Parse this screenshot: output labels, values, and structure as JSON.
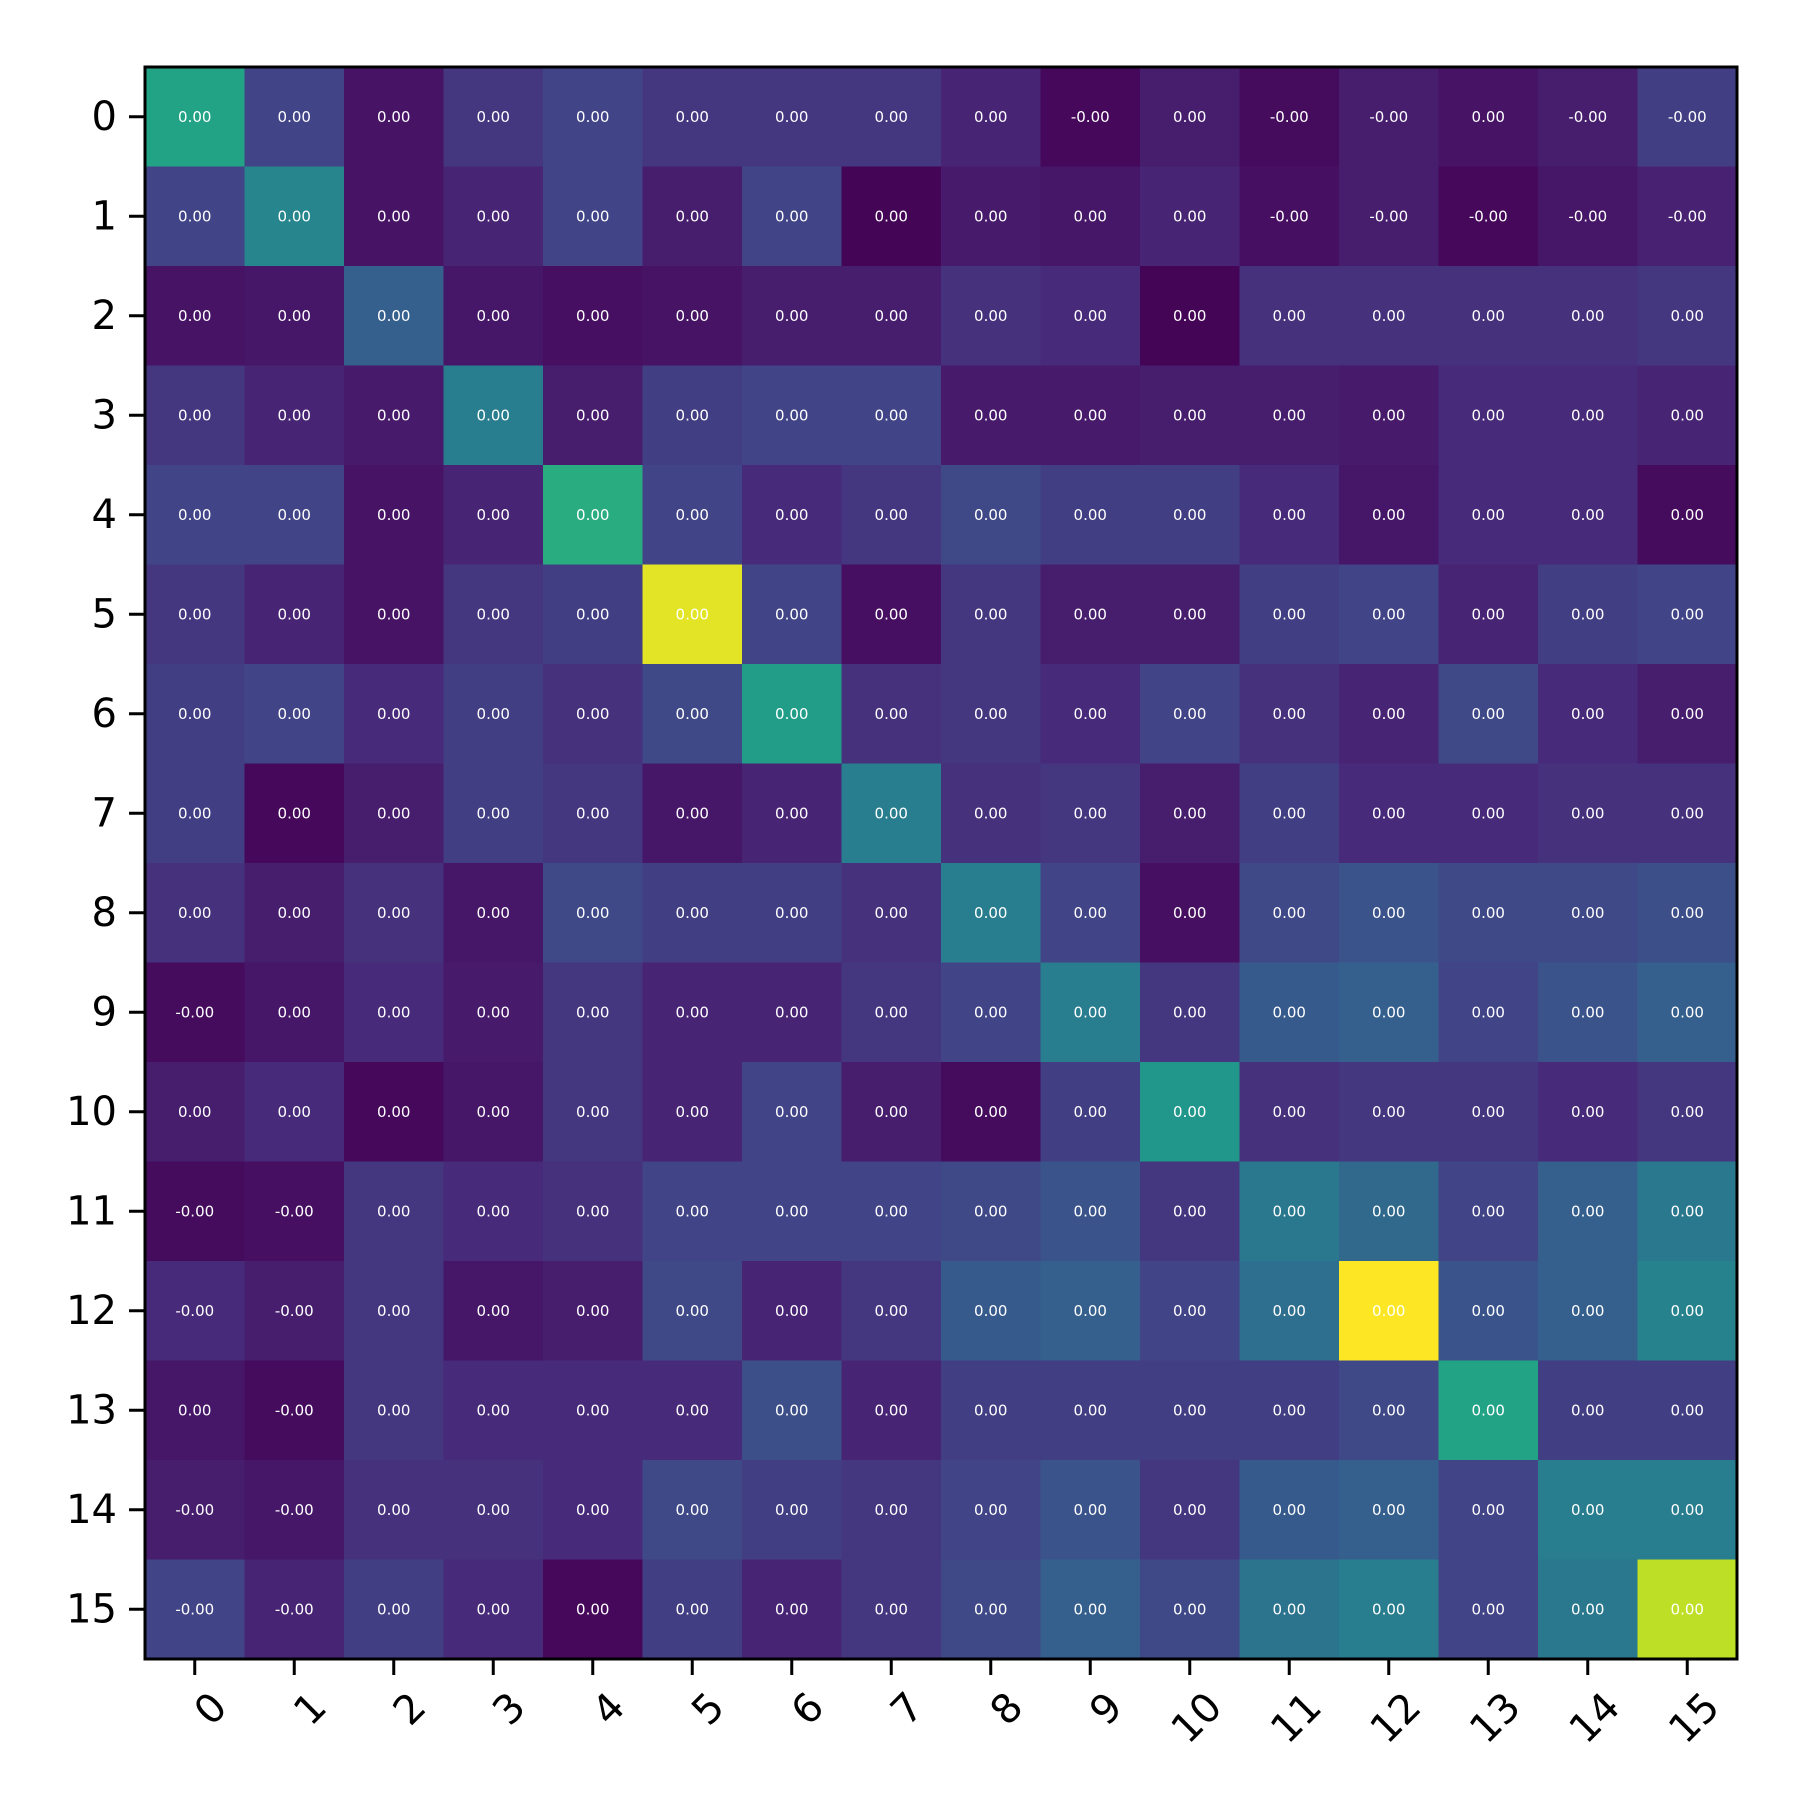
{
  "chart_data": {
    "type": "heatmap",
    "title": "",
    "xlabel": "",
    "ylabel": "",
    "colormap": "viridis",
    "colorbar": false,
    "x_categories": [
      "0",
      "1",
      "2",
      "3",
      "4",
      "5",
      "6",
      "7",
      "8",
      "9",
      "10",
      "11",
      "12",
      "13",
      "14",
      "15"
    ],
    "y_categories": [
      "0",
      "1",
      "2",
      "3",
      "4",
      "5",
      "6",
      "7",
      "8",
      "9",
      "10",
      "11",
      "12",
      "13",
      "14",
      "15"
    ],
    "x_tick_rotation_deg": 45,
    "intensity": [
      [
        0.58,
        0.2,
        0.05,
        0.16,
        0.2,
        0.16,
        0.16,
        0.16,
        0.1,
        0.02,
        0.08,
        0.03,
        0.08,
        0.05,
        0.08,
        0.18
      ],
      [
        0.2,
        0.45,
        0.05,
        0.1,
        0.2,
        0.08,
        0.2,
        0.01,
        0.07,
        0.06,
        0.1,
        0.04,
        0.08,
        0.02,
        0.06,
        0.09
      ],
      [
        0.05,
        0.06,
        0.3,
        0.06,
        0.04,
        0.05,
        0.08,
        0.08,
        0.14,
        0.12,
        0.01,
        0.14,
        0.14,
        0.14,
        0.14,
        0.16
      ],
      [
        0.16,
        0.1,
        0.07,
        0.42,
        0.08,
        0.18,
        0.2,
        0.2,
        0.07,
        0.07,
        0.08,
        0.08,
        0.07,
        0.12,
        0.12,
        0.1
      ],
      [
        0.2,
        0.2,
        0.05,
        0.1,
        0.62,
        0.2,
        0.12,
        0.16,
        0.22,
        0.18,
        0.18,
        0.12,
        0.06,
        0.12,
        0.12,
        0.03
      ],
      [
        0.16,
        0.1,
        0.05,
        0.16,
        0.18,
        0.96,
        0.2,
        0.04,
        0.16,
        0.08,
        0.08,
        0.18,
        0.2,
        0.1,
        0.18,
        0.2
      ],
      [
        0.18,
        0.2,
        0.12,
        0.18,
        0.14,
        0.22,
        0.55,
        0.14,
        0.16,
        0.12,
        0.2,
        0.14,
        0.1,
        0.22,
        0.12,
        0.08
      ],
      [
        0.18,
        0.02,
        0.08,
        0.18,
        0.16,
        0.06,
        0.1,
        0.42,
        0.14,
        0.16,
        0.08,
        0.18,
        0.12,
        0.12,
        0.14,
        0.14
      ],
      [
        0.14,
        0.08,
        0.14,
        0.06,
        0.22,
        0.18,
        0.18,
        0.14,
        0.42,
        0.2,
        0.04,
        0.22,
        0.26,
        0.22,
        0.22,
        0.24
      ],
      [
        0.03,
        0.06,
        0.12,
        0.07,
        0.16,
        0.1,
        0.1,
        0.16,
        0.2,
        0.42,
        0.16,
        0.28,
        0.3,
        0.2,
        0.26,
        0.3
      ],
      [
        0.08,
        0.12,
        0.02,
        0.06,
        0.16,
        0.1,
        0.2,
        0.08,
        0.03,
        0.18,
        0.52,
        0.14,
        0.16,
        0.16,
        0.12,
        0.16
      ],
      [
        0.03,
        0.04,
        0.16,
        0.12,
        0.14,
        0.2,
        0.2,
        0.2,
        0.22,
        0.26,
        0.16,
        0.4,
        0.34,
        0.2,
        0.3,
        0.4
      ],
      [
        0.12,
        0.08,
        0.16,
        0.06,
        0.08,
        0.22,
        0.1,
        0.16,
        0.28,
        0.3,
        0.2,
        0.36,
        1.0,
        0.26,
        0.3,
        0.44
      ],
      [
        0.06,
        0.03,
        0.16,
        0.12,
        0.12,
        0.12,
        0.24,
        0.1,
        0.18,
        0.18,
        0.18,
        0.18,
        0.22,
        0.58,
        0.18,
        0.18
      ],
      [
        0.08,
        0.06,
        0.14,
        0.14,
        0.12,
        0.22,
        0.18,
        0.16,
        0.2,
        0.26,
        0.16,
        0.28,
        0.3,
        0.2,
        0.42,
        0.42
      ],
      [
        0.2,
        0.1,
        0.18,
        0.12,
        0.02,
        0.18,
        0.1,
        0.16,
        0.22,
        0.3,
        0.22,
        0.38,
        0.42,
        0.2,
        0.4,
        0.9
      ]
    ],
    "labels": [
      [
        "0.00",
        "0.00",
        "0.00",
        "0.00",
        "0.00",
        "0.00",
        "0.00",
        "0.00",
        "0.00",
        "-0.00",
        "0.00",
        "-0.00",
        "-0.00",
        "0.00",
        "-0.00",
        "-0.00"
      ],
      [
        "0.00",
        "0.00",
        "0.00",
        "0.00",
        "0.00",
        "0.00",
        "0.00",
        "0.00",
        "0.00",
        "0.00",
        "0.00",
        "-0.00",
        "-0.00",
        "-0.00",
        "-0.00",
        "-0.00"
      ],
      [
        "0.00",
        "0.00",
        "0.00",
        "0.00",
        "0.00",
        "0.00",
        "0.00",
        "0.00",
        "0.00",
        "0.00",
        "0.00",
        "0.00",
        "0.00",
        "0.00",
        "0.00",
        "0.00"
      ],
      [
        "0.00",
        "0.00",
        "0.00",
        "0.00",
        "0.00",
        "0.00",
        "0.00",
        "0.00",
        "0.00",
        "0.00",
        "0.00",
        "0.00",
        "0.00",
        "0.00",
        "0.00",
        "0.00"
      ],
      [
        "0.00",
        "0.00",
        "0.00",
        "0.00",
        "0.00",
        "0.00",
        "0.00",
        "0.00",
        "0.00",
        "0.00",
        "0.00",
        "0.00",
        "0.00",
        "0.00",
        "0.00",
        "0.00"
      ],
      [
        "0.00",
        "0.00",
        "0.00",
        "0.00",
        "0.00",
        "0.00",
        "0.00",
        "0.00",
        "0.00",
        "0.00",
        "0.00",
        "0.00",
        "0.00",
        "0.00",
        "0.00",
        "0.00"
      ],
      [
        "0.00",
        "0.00",
        "0.00",
        "0.00",
        "0.00",
        "0.00",
        "0.00",
        "0.00",
        "0.00",
        "0.00",
        "0.00",
        "0.00",
        "0.00",
        "0.00",
        "0.00",
        "0.00"
      ],
      [
        "0.00",
        "0.00",
        "0.00",
        "0.00",
        "0.00",
        "0.00",
        "0.00",
        "0.00",
        "0.00",
        "0.00",
        "0.00",
        "0.00",
        "0.00",
        "0.00",
        "0.00",
        "0.00"
      ],
      [
        "0.00",
        "0.00",
        "0.00",
        "0.00",
        "0.00",
        "0.00",
        "0.00",
        "0.00",
        "0.00",
        "0.00",
        "0.00",
        "0.00",
        "0.00",
        "0.00",
        "0.00",
        "0.00"
      ],
      [
        "-0.00",
        "0.00",
        "0.00",
        "0.00",
        "0.00",
        "0.00",
        "0.00",
        "0.00",
        "0.00",
        "0.00",
        "0.00",
        "0.00",
        "0.00",
        "0.00",
        "0.00",
        "0.00"
      ],
      [
        "0.00",
        "0.00",
        "0.00",
        "0.00",
        "0.00",
        "0.00",
        "0.00",
        "0.00",
        "0.00",
        "0.00",
        "0.00",
        "0.00",
        "0.00",
        "0.00",
        "0.00",
        "0.00"
      ],
      [
        "-0.00",
        "-0.00",
        "0.00",
        "0.00",
        "0.00",
        "0.00",
        "0.00",
        "0.00",
        "0.00",
        "0.00",
        "0.00",
        "0.00",
        "0.00",
        "0.00",
        "0.00",
        "0.00"
      ],
      [
        "-0.00",
        "-0.00",
        "0.00",
        "0.00",
        "0.00",
        "0.00",
        "0.00",
        "0.00",
        "0.00",
        "0.00",
        "0.00",
        "0.00",
        "0.00",
        "0.00",
        "0.00",
        "0.00"
      ],
      [
        "0.00",
        "-0.00",
        "0.00",
        "0.00",
        "0.00",
        "0.00",
        "0.00",
        "0.00",
        "0.00",
        "0.00",
        "0.00",
        "0.00",
        "0.00",
        "0.00",
        "0.00",
        "0.00"
      ],
      [
        "-0.00",
        "-0.00",
        "0.00",
        "0.00",
        "0.00",
        "0.00",
        "0.00",
        "0.00",
        "0.00",
        "0.00",
        "0.00",
        "0.00",
        "0.00",
        "0.00",
        "0.00",
        "0.00"
      ],
      [
        "-0.00",
        "-0.00",
        "0.00",
        "0.00",
        "0.00",
        "0.00",
        "0.00",
        "0.00",
        "0.00",
        "0.00",
        "0.00",
        "0.00",
        "0.00",
        "0.00",
        "0.00",
        "0.00"
      ]
    ]
  }
}
